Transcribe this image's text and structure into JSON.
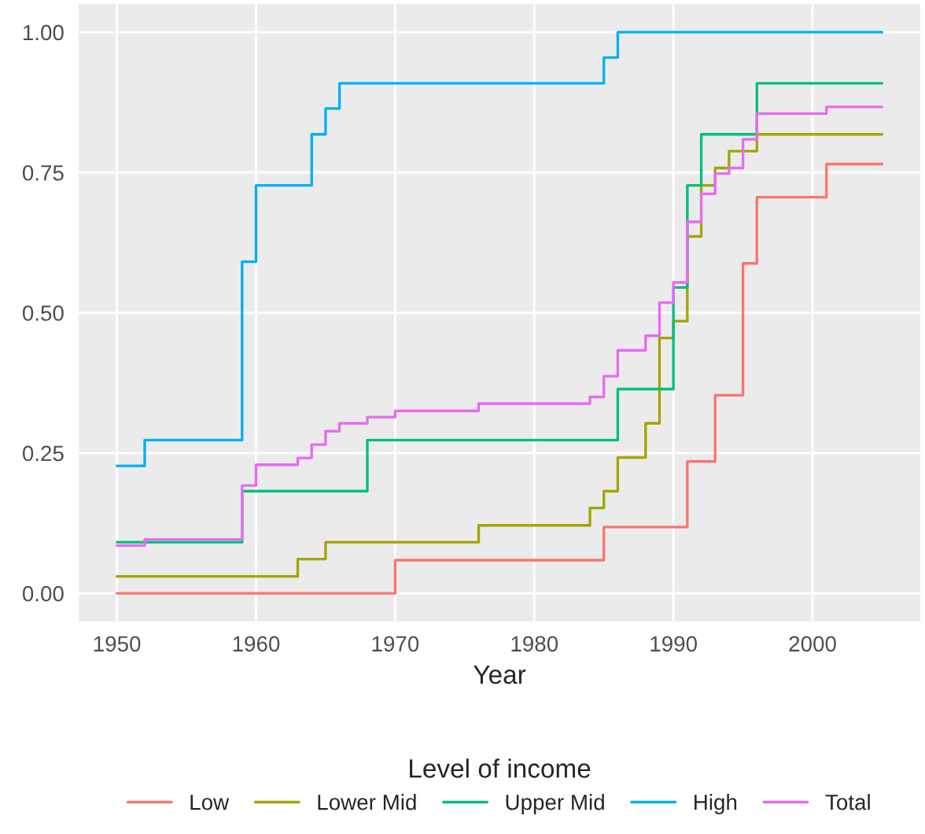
{
  "chart_data": {
    "type": "step",
    "xlabel": "Year",
    "legend_title": "Level of income",
    "legend": "bottom",
    "grid": true,
    "line_style": "solid",
    "xlim": [
      1947.25,
      2007.75
    ],
    "xticks": [
      1950,
      1960,
      1970,
      1980,
      1990,
      2000
    ],
    "ylim": [
      -0.05,
      1.05
    ],
    "yticks": [
      {
        "value": 0,
        "label": "0.00"
      },
      {
        "value": 0.25,
        "label": "0.25"
      },
      {
        "value": 0.5,
        "label": "0.50"
      },
      {
        "value": 0.75,
        "label": "0.75"
      },
      {
        "value": 1,
        "label": "1.00"
      }
    ],
    "series": [
      {
        "name": "Low",
        "color": "#f8766d",
        "x": [
          1950,
          1970,
          1985,
          1991,
          1993,
          1995,
          1996,
          2001,
          2005
        ],
        "values": [
          0,
          0.059,
          0.118,
          0.235,
          0.353,
          0.588,
          0.706,
          0.765,
          0.765
        ]
      },
      {
        "name": "Lower Mid",
        "color": "#a3a500",
        "x": [
          1950,
          1963,
          1965,
          1976,
          1984,
          1985,
          1986,
          1988,
          1989,
          1990,
          1991,
          1992,
          1993,
          1994,
          1996,
          2005
        ],
        "values": [
          0.03,
          0.061,
          0.091,
          0.121,
          0.152,
          0.182,
          0.242,
          0.303,
          0.455,
          0.485,
          0.636,
          0.727,
          0.758,
          0.788,
          0.818,
          0.818
        ]
      },
      {
        "name": "Upper Mid",
        "color": "#00bf7d",
        "x": [
          1950,
          1959,
          1968,
          1986,
          1990,
          1991,
          1992,
          1996,
          2005
        ],
        "values": [
          0.091,
          0.182,
          0.273,
          0.364,
          0.545,
          0.727,
          0.818,
          0.909,
          0.909
        ]
      },
      {
        "name": "High",
        "color": "#00b0f6",
        "x": [
          1950,
          1952,
          1959,
          1960,
          1964,
          1965,
          1966,
          1985,
          1986,
          2005
        ],
        "values": [
          0.227,
          0.273,
          0.591,
          0.727,
          0.818,
          0.864,
          0.909,
          0.955,
          1.0,
          1.0
        ]
      },
      {
        "name": "Total",
        "color": "#e76bf3",
        "x": [
          1950,
          1952,
          1959,
          1960,
          1963,
          1964,
          1965,
          1966,
          1968,
          1970,
          1976,
          1984,
          1985,
          1986,
          1988,
          1989,
          1990,
          1991,
          1992,
          1993,
          1994,
          1995,
          1996,
          2001,
          2005
        ],
        "values": [
          0.085,
          0.096,
          0.192,
          0.229,
          0.241,
          0.265,
          0.289,
          0.303,
          0.314,
          0.325,
          0.338,
          0.35,
          0.387,
          0.433,
          0.459,
          0.518,
          0.554,
          0.662,
          0.712,
          0.748,
          0.758,
          0.809,
          0.855,
          0.867,
          0.867
        ]
      }
    ]
  }
}
